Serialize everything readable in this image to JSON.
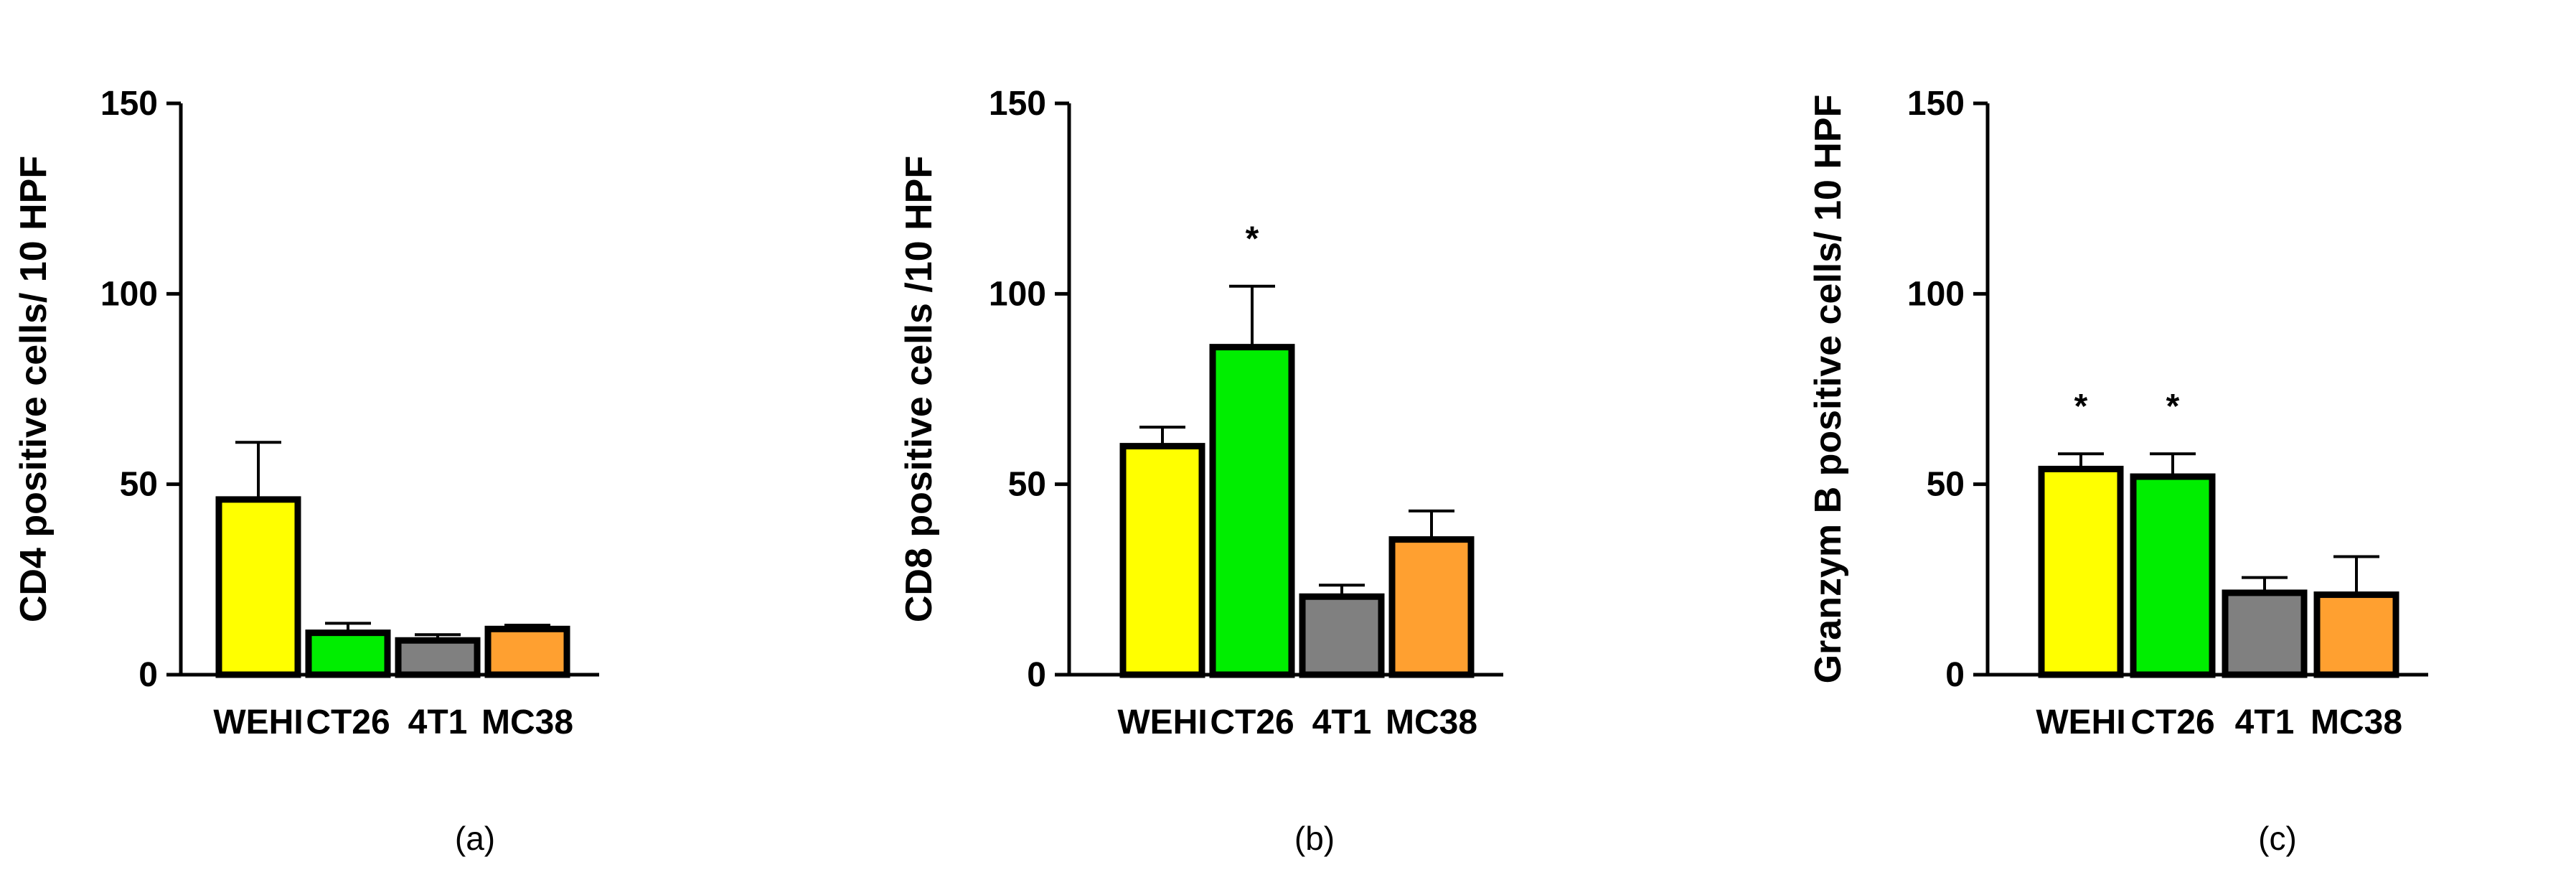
{
  "chart_data": [
    {
      "type": "bar",
      "panel_label": "(a)",
      "ylabel": "CD4 positive cells/ 10 HPF",
      "categories": [
        "WEHI",
        "CT26",
        "4T1",
        "MC38"
      ],
      "values": [
        46,
        11,
        9,
        12
      ],
      "errors": [
        15,
        2.5,
        1.5,
        1
      ],
      "significance": [
        "",
        "",
        "",
        ""
      ],
      "colors": [
        "#FFFF00",
        "#00EE00",
        "#808080",
        "#FFA030"
      ],
      "ylim": [
        0,
        150
      ],
      "yticks": [
        "0",
        "50",
        "100",
        "150"
      ]
    },
    {
      "type": "bar",
      "panel_label": "(b)",
      "ylabel": "CD8 positive cells /10 HPF",
      "categories": [
        "WEHI",
        "CT26",
        "4T1",
        "MC38"
      ],
      "values": [
        60,
        86,
        20.5,
        35.5
      ],
      "errors": [
        5,
        16,
        3,
        7.5
      ],
      "significance": [
        "",
        "*",
        "",
        ""
      ],
      "colors": [
        "#FFFF00",
        "#00EE00",
        "#808080",
        "#FFA030"
      ],
      "ylim": [
        0,
        150
      ],
      "yticks": [
        "0",
        "50",
        "100",
        "150"
      ]
    },
    {
      "type": "bar",
      "panel_label": "(c)",
      "ylabel": "Granzym B positive cells/ 10 HPF",
      "categories": [
        "WEHI",
        "CT26",
        "4T1",
        "MC38"
      ],
      "values": [
        54,
        52,
        21.5,
        21
      ],
      "errors": [
        4,
        6,
        4,
        10
      ],
      "significance": [
        "*",
        "*",
        "",
        ""
      ],
      "colors": [
        "#FFFF00",
        "#00EE00",
        "#808080",
        "#FFA030"
      ],
      "ylim": [
        0,
        150
      ],
      "yticks": [
        "0",
        "50",
        "100",
        "150"
      ]
    }
  ]
}
